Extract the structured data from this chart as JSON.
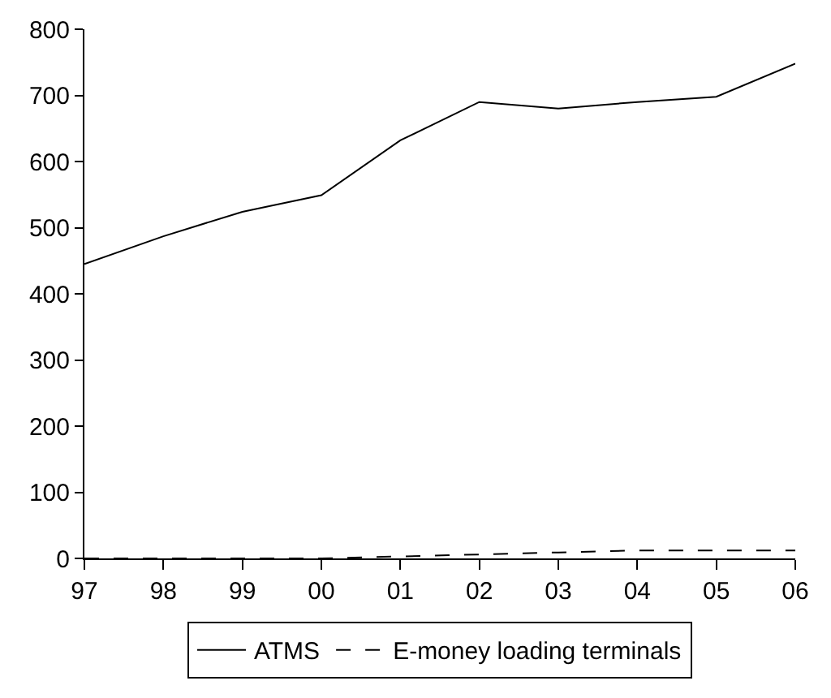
{
  "chart_data": {
    "type": "line",
    "categories": [
      "97",
      "98",
      "99",
      "00",
      "01",
      "02",
      "03",
      "04",
      "05",
      "06"
    ],
    "series": [
      {
        "name": "ATMS",
        "color": "#000000",
        "line_style": "solid",
        "values": [
          445,
          487,
          524,
          549,
          632,
          690,
          680,
          690,
          698,
          748
        ]
      },
      {
        "name": "E-money loading terminals",
        "color": "#000000",
        "line_style": "dashed",
        "values": [
          0,
          0,
          0,
          0,
          3,
          6,
          9,
          12,
          12,
          12
        ]
      }
    ],
    "ylim": [
      0,
      800
    ],
    "yticks": [
      0,
      100,
      200,
      300,
      400,
      500,
      600,
      700,
      800
    ],
    "grid": false,
    "legend": "bottom",
    "marker": "none"
  }
}
